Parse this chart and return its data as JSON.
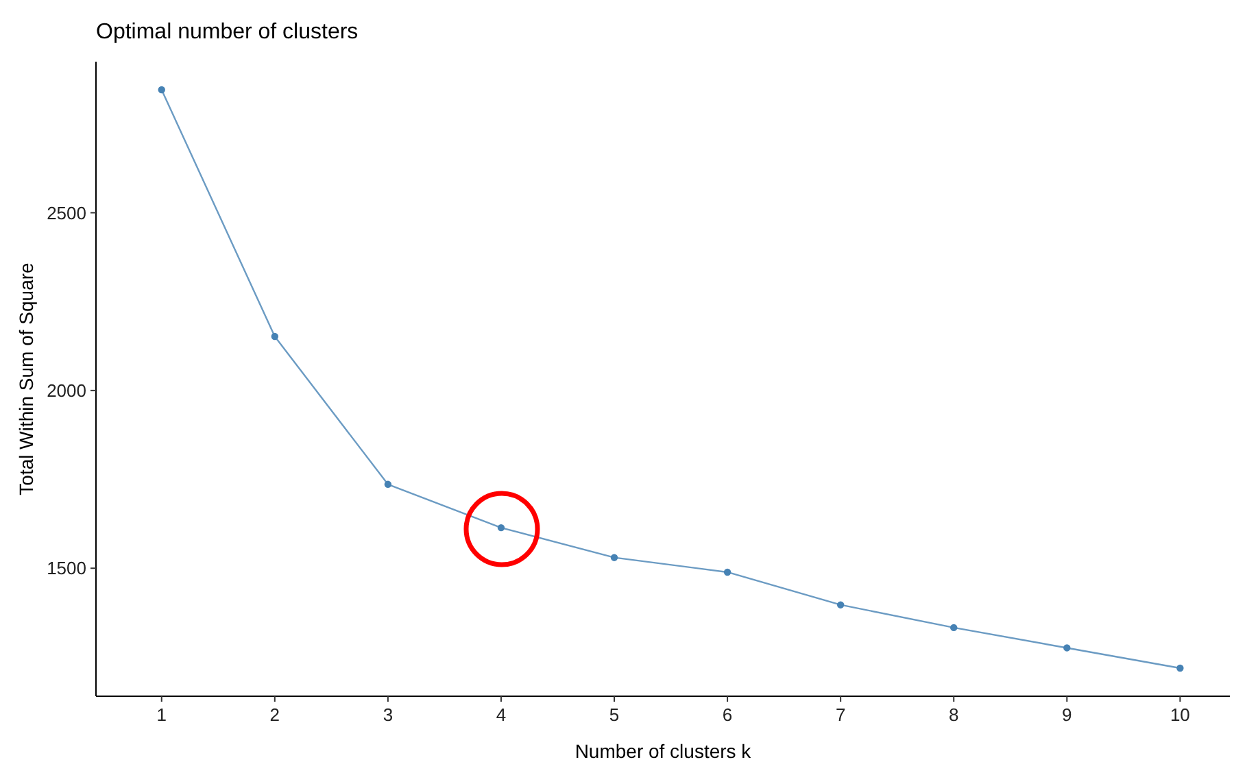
{
  "chart_data": {
    "type": "line",
    "title": "Optimal number of clusters",
    "xlabel": "Number of clusters k",
    "ylabel": "Total Within Sum of Square",
    "x": [
      1,
      2,
      3,
      4,
      5,
      6,
      7,
      8,
      9,
      10
    ],
    "series": [
      {
        "color": "#4682b4",
        "values": [
          2846,
          2152,
          1736,
          1614,
          1530,
          1489,
          1397,
          1333,
          1276,
          1219
        ]
      }
    ],
    "xlim": [
      0.42,
      10.44
    ],
    "xticks": [
      1,
      2,
      3,
      4,
      5,
      6,
      7,
      8,
      9,
      10
    ],
    "ylim": [
      1140,
      2925
    ],
    "yticks": [
      1500,
      2000,
      2500
    ],
    "grid": false,
    "marker": "circle",
    "line_style": "solid"
  }
}
